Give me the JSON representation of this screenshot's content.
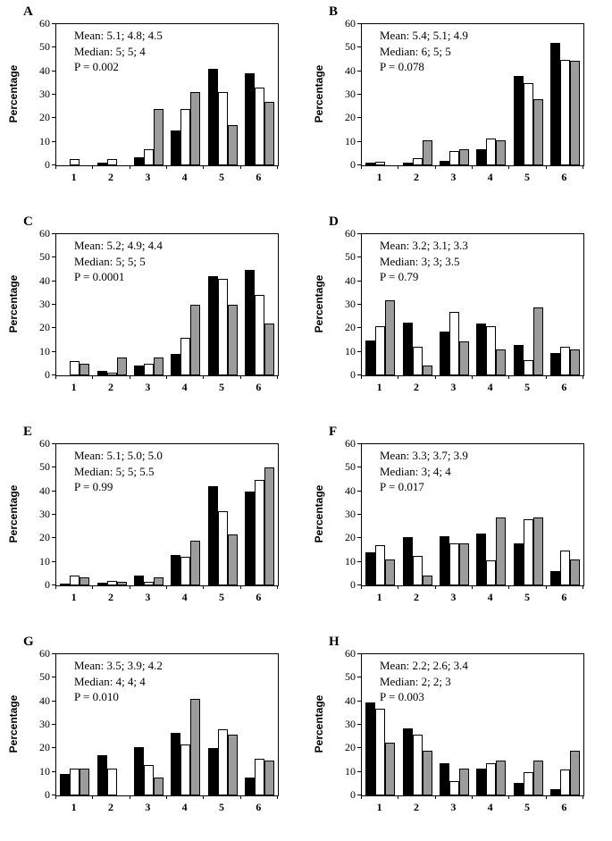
{
  "figure": {
    "ylabel": "Percentage",
    "yticks": [
      0,
      10,
      20,
      30,
      40,
      50,
      60
    ],
    "ylim": [
      0,
      60
    ],
    "categories": [
      "1",
      "2",
      "3",
      "4",
      "5",
      "6"
    ],
    "series_colors": {
      "black": "#000000",
      "white": "#ffffff",
      "gray": "#9c9c9c"
    },
    "axis_color": "#000000",
    "background": "#ffffff"
  },
  "chart_data": [
    {
      "type": "bar",
      "panel": "A",
      "annotation": [
        "Mean: 5.1; 4.8; 4.5",
        "Median: 5; 5; 4",
        "P = 0.002"
      ],
      "categories": [
        "1",
        "2",
        "3",
        "4",
        "5",
        "6"
      ],
      "ylabel": "Percentage",
      "ylim": [
        0,
        60
      ],
      "series": [
        {
          "name": "black",
          "values": [
            0,
            1,
            3.5,
            15,
            41,
            39
          ]
        },
        {
          "name": "white",
          "values": [
            2.5,
            2.5,
            7,
            24,
            31,
            33
          ]
        },
        {
          "name": "gray",
          "values": [
            0,
            0,
            24,
            31,
            17,
            27
          ]
        }
      ]
    },
    {
      "type": "bar",
      "panel": "B",
      "annotation": [
        "Mean: 5.4; 5.1; 4.9",
        "Median: 6; 5; 5",
        "P = 0.078"
      ],
      "categories": [
        "1",
        "2",
        "3",
        "4",
        "5",
        "6"
      ],
      "ylabel": "Percentage",
      "ylim": [
        0,
        60
      ],
      "series": [
        {
          "name": "black",
          "values": [
            1,
            1,
            2,
            7,
            38,
            52
          ]
        },
        {
          "name": "white",
          "values": [
            1.5,
            3,
            6,
            11.5,
            35,
            45
          ]
        },
        {
          "name": "gray",
          "values": [
            0,
            10.5,
            7,
            10.5,
            28,
            44.5
          ]
        }
      ]
    },
    {
      "type": "bar",
      "panel": "C",
      "annotation": [
        "Mean: 5.2; 4.9; 4.4",
        "Median: 5; 5; 5",
        "P = 0.0001"
      ],
      "categories": [
        "1",
        "2",
        "3",
        "4",
        "5",
        "6"
      ],
      "ylabel": "Percentage",
      "ylim": [
        0,
        60
      ],
      "series": [
        {
          "name": "black",
          "values": [
            0,
            2,
            4,
            9,
            42,
            45
          ]
        },
        {
          "name": "white",
          "values": [
            6,
            1,
            5,
            16,
            41,
            34
          ]
        },
        {
          "name": "gray",
          "values": [
            5,
            7.5,
            7.5,
            30,
            30,
            22
          ]
        }
      ]
    },
    {
      "type": "bar",
      "panel": "D",
      "annotation": [
        "Mean: 3.2; 3.1; 3.3",
        "Median: 3; 3; 3.5",
        "P = 0.79"
      ],
      "categories": [
        "1",
        "2",
        "3",
        "4",
        "5",
        "6"
      ],
      "ylabel": "Percentage",
      "ylim": [
        0,
        60
      ],
      "series": [
        {
          "name": "black",
          "values": [
            15,
            22.5,
            18.5,
            22,
            13,
            9.5
          ]
        },
        {
          "name": "white",
          "values": [
            21,
            12,
            27,
            21,
            6.5,
            12
          ]
        },
        {
          "name": "gray",
          "values": [
            32,
            4,
            14.5,
            11,
            29,
            11
          ]
        }
      ]
    },
    {
      "type": "bar",
      "panel": "E",
      "annotation": [
        "Mean: 5.1; 5.0; 5.0",
        "Median: 5; 5; 5.5",
        "P = 0.99"
      ],
      "categories": [
        "1",
        "2",
        "3",
        "4",
        "5",
        "6"
      ],
      "ylabel": "Percentage",
      "ylim": [
        0,
        60
      ],
      "series": [
        {
          "name": "black",
          "values": [
            0.5,
            1,
            4,
            13,
            42,
            40
          ]
        },
        {
          "name": "white",
          "values": [
            4,
            2,
            1.5,
            12,
            31.5,
            45
          ]
        },
        {
          "name": "gray",
          "values": [
            3.5,
            1.5,
            3.5,
            19,
            21.5,
            50
          ]
        }
      ]
    },
    {
      "type": "bar",
      "panel": "F",
      "annotation": [
        "Mean: 3.3; 3.7; 3.9",
        "Median: 3; 4; 4",
        "P = 0.017"
      ],
      "categories": [
        "1",
        "2",
        "3",
        "4",
        "5",
        "6"
      ],
      "ylabel": "Percentage",
      "ylim": [
        0,
        60
      ],
      "series": [
        {
          "name": "black",
          "values": [
            14,
            20.5,
            21,
            22,
            18,
            6
          ]
        },
        {
          "name": "white",
          "values": [
            17,
            12.5,
            18,
            10.5,
            28,
            15
          ]
        },
        {
          "name": "gray",
          "values": [
            11,
            4,
            18,
            29,
            29,
            11
          ]
        }
      ]
    },
    {
      "type": "bar",
      "panel": "G",
      "annotation": [
        "Mean: 3.5; 3.9; 4.2",
        "Median: 4; 4; 4",
        "P = 0.010"
      ],
      "categories": [
        "1",
        "2",
        "3",
        "4",
        "5",
        "6"
      ],
      "ylabel": "Percentage",
      "ylim": [
        0,
        60
      ],
      "series": [
        {
          "name": "black",
          "values": [
            9,
            17,
            20.5,
            26.5,
            20,
            7.5
          ]
        },
        {
          "name": "white",
          "values": [
            11.5,
            11.5,
            13,
            21.5,
            28,
            15.5
          ]
        },
        {
          "name": "gray",
          "values": [
            11.5,
            0,
            7.5,
            41,
            26,
            15
          ]
        }
      ]
    },
    {
      "type": "bar",
      "panel": "H",
      "annotation": [
        "Mean: 2.2; 2.6; 3.4",
        "Median: 2; 2; 3",
        "P = 0.003"
      ],
      "categories": [
        "1",
        "2",
        "3",
        "4",
        "5",
        "6"
      ],
      "ylabel": "Percentage",
      "ylim": [
        0,
        60
      ],
      "series": [
        {
          "name": "black",
          "values": [
            39.5,
            28.5,
            13.5,
            11.5,
            5.5,
            2.5
          ]
        },
        {
          "name": "white",
          "values": [
            37,
            26,
            6,
            13.5,
            10,
            11
          ]
        },
        {
          "name": "gray",
          "values": [
            22.5,
            19,
            11.5,
            15,
            15,
            19
          ]
        }
      ]
    }
  ]
}
